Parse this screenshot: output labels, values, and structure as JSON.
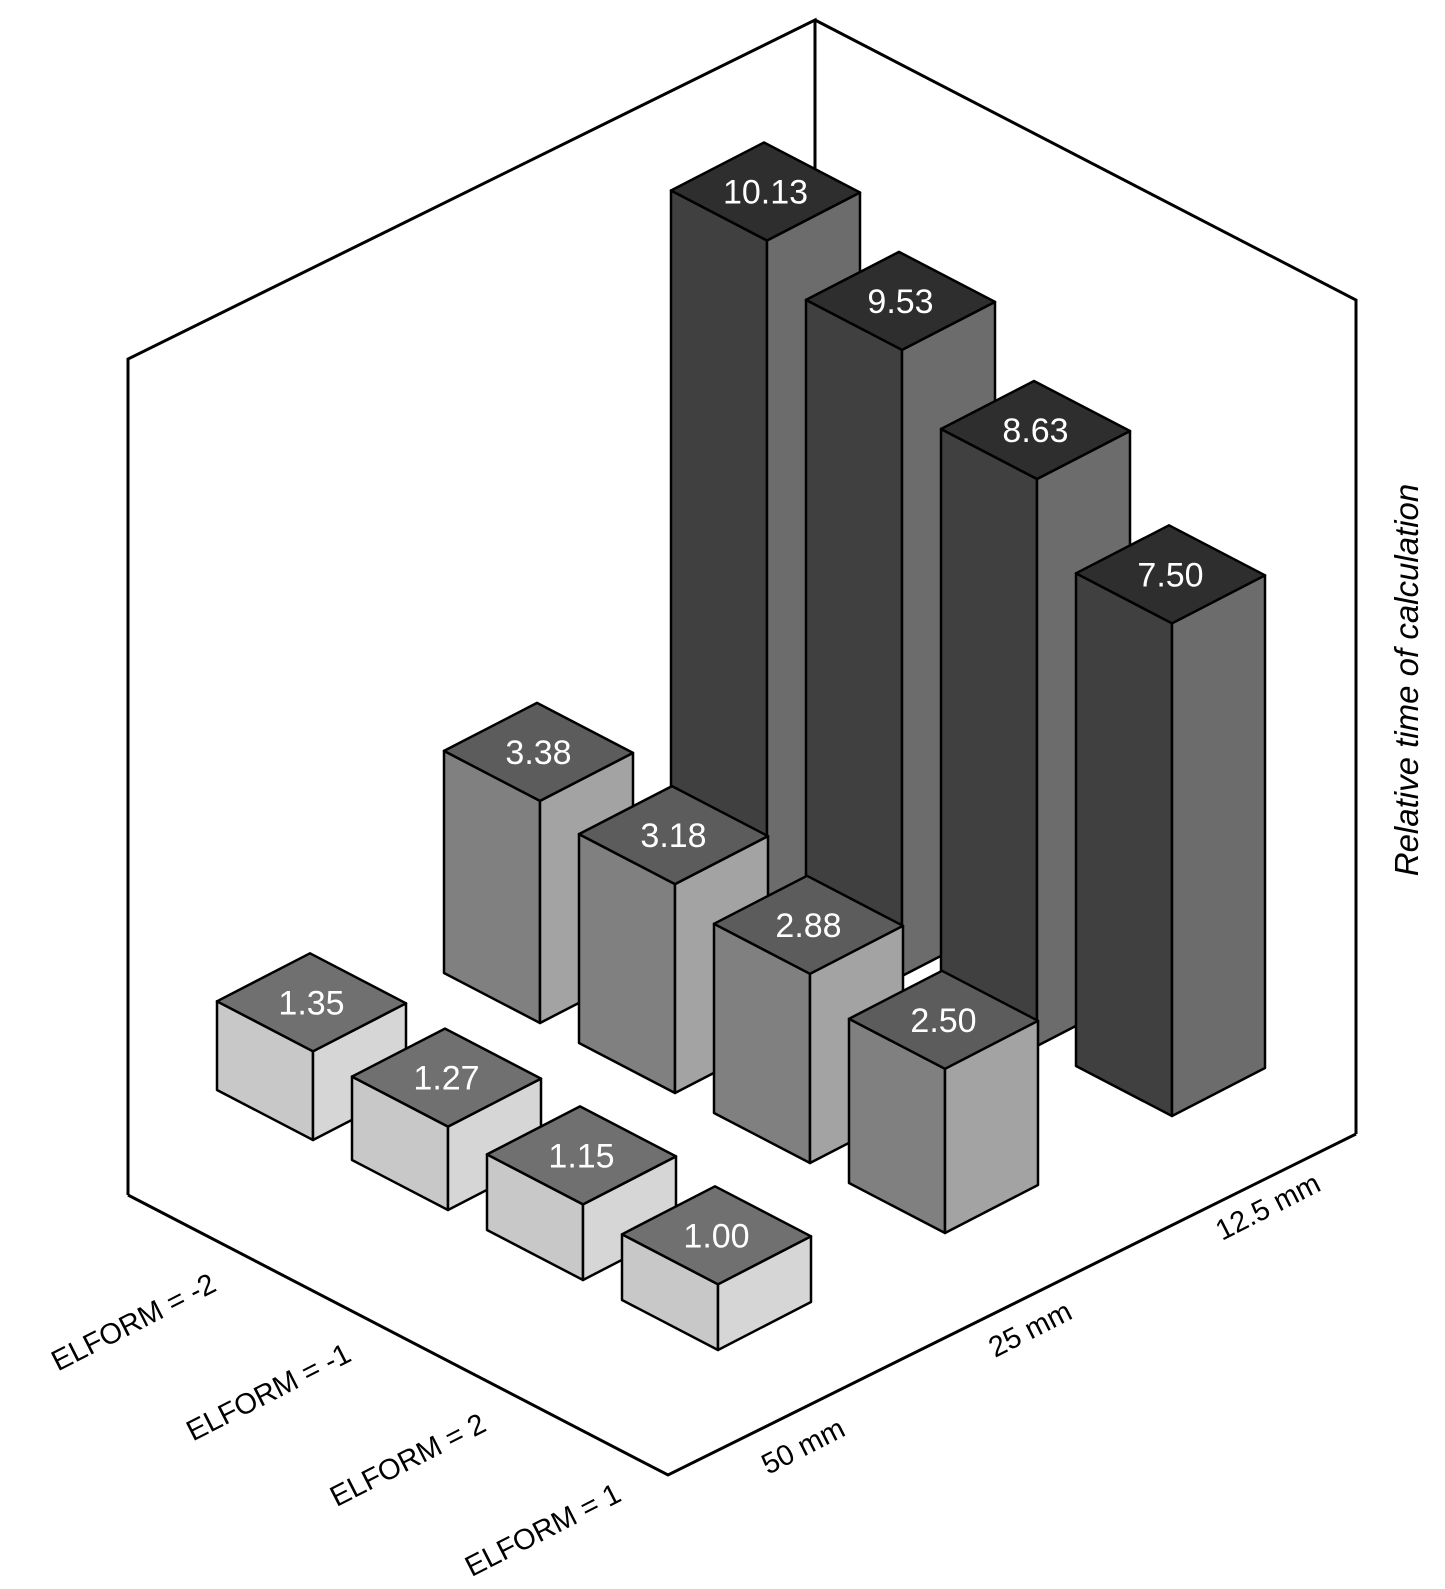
{
  "chart_data": {
    "type": "bar3d",
    "title": "",
    "zlabel": "Relative time of calculation",
    "row_labels": [
      "ELFORM = -2",
      "ELFORM = -1",
      "ELFORM = 2",
      "ELFORM = 1"
    ],
    "column_labels": [
      "50 mm",
      "25 mm",
      "12.5 mm"
    ],
    "values": [
      [
        1.35,
        3.38,
        10.13
      ],
      [
        1.27,
        3.18,
        9.53
      ],
      [
        1.15,
        2.88,
        8.63
      ],
      [
        1.0,
        2.5,
        7.5
      ]
    ],
    "value_labels": [
      [
        "1.35",
        "3.38",
        "10.13"
      ],
      [
        "1.27",
        "3.18",
        "9.53"
      ],
      [
        "1.15",
        "2.88",
        "8.63"
      ],
      [
        "1.00",
        "2.50",
        "7.50"
      ]
    ],
    "column_colors": [
      {
        "front": "#c8c8c8",
        "side": "#d6d6d6",
        "top": "#707070"
      },
      {
        "front": "#808080",
        "side": "#a3a3a3",
        "top": "#5c5c5c"
      },
      {
        "front": "#404040",
        "side": "#6c6c6c",
        "top": "#2e2e2e"
      }
    ]
  }
}
